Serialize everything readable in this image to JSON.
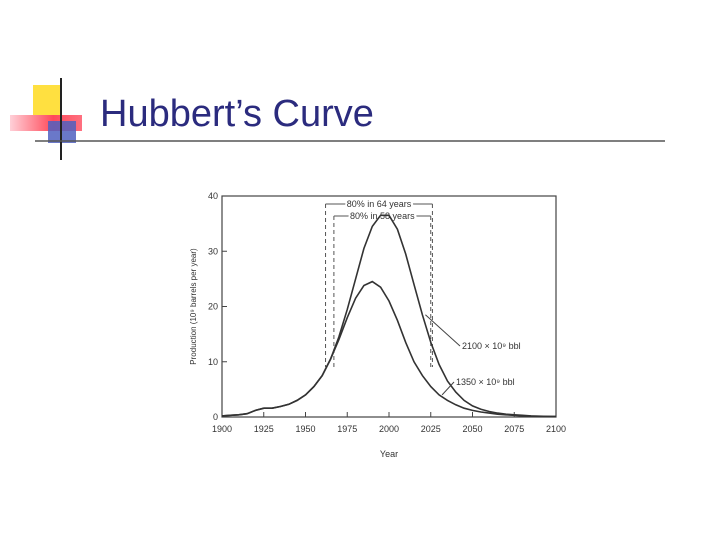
{
  "slide_title": "Hubbert’s Curve",
  "chart_data": {
    "type": "line",
    "x_label": "Year",
    "y_label": "Production (10⁹ barrels per year)",
    "x": [
      1900,
      1905,
      1910,
      1915,
      1920,
      1925,
      1930,
      1935,
      1940,
      1945,
      1950,
      1955,
      1960,
      1965,
      1970,
      1975,
      1980,
      1985,
      1990,
      1995,
      2000,
      2005,
      2010,
      2015,
      2020,
      2025,
      2030,
      2035,
      2040,
      2045,
      2050,
      2055,
      2060,
      2065,
      2070,
      2075,
      2080,
      2085,
      2090,
      2095,
      2100
    ],
    "series": [
      {
        "name": "2100 × 10⁹ bbl",
        "color": "#333333",
        "values": [
          0.2,
          0.3,
          0.4,
          0.6,
          1.2,
          1.6,
          1.6,
          1.9,
          2.3,
          3,
          4,
          5.5,
          7.5,
          10.5,
          14.5,
          19.5,
          25,
          30.5,
          34.5,
          36.5,
          36.5,
          34,
          29.5,
          24,
          18.5,
          13.5,
          9.5,
          6.5,
          4.5,
          3,
          2,
          1.4,
          1,
          0.7,
          0.5,
          0.4,
          0.3,
          0.2,
          0.15,
          0.1,
          0.1
        ]
      },
      {
        "name": "1350 × 10⁹ bbl",
        "color": "#333333",
        "values": [
          0.2,
          0.3,
          0.4,
          0.6,
          1.2,
          1.6,
          1.6,
          1.9,
          2.3,
          3,
          4,
          5.5,
          7.5,
          10.5,
          14,
          18,
          21.5,
          23.8,
          24.5,
          23.5,
          21,
          17.5,
          13.5,
          10,
          7.5,
          5.5,
          4,
          3,
          2.2,
          1.6,
          1.2,
          0.9,
          0.7,
          0.5,
          0.4,
          0.3,
          0.2,
          0.15,
          0.1,
          0.1,
          0.05
        ]
      }
    ],
    "spans": [
      {
        "label": "80% in 64 years",
        "x": [
          1962,
          2026
        ]
      },
      {
        "label": "80% in 58 years",
        "x": [
          1967,
          2025
        ]
      }
    ],
    "xlim": [
      1900,
      2100
    ],
    "xticks": [
      1900,
      1925,
      1950,
      1975,
      2000,
      2025,
      2050,
      2075,
      2100
    ],
    "ylim": [
      0,
      40
    ],
    "yticks": [
      0,
      10,
      20,
      30,
      40
    ]
  }
}
